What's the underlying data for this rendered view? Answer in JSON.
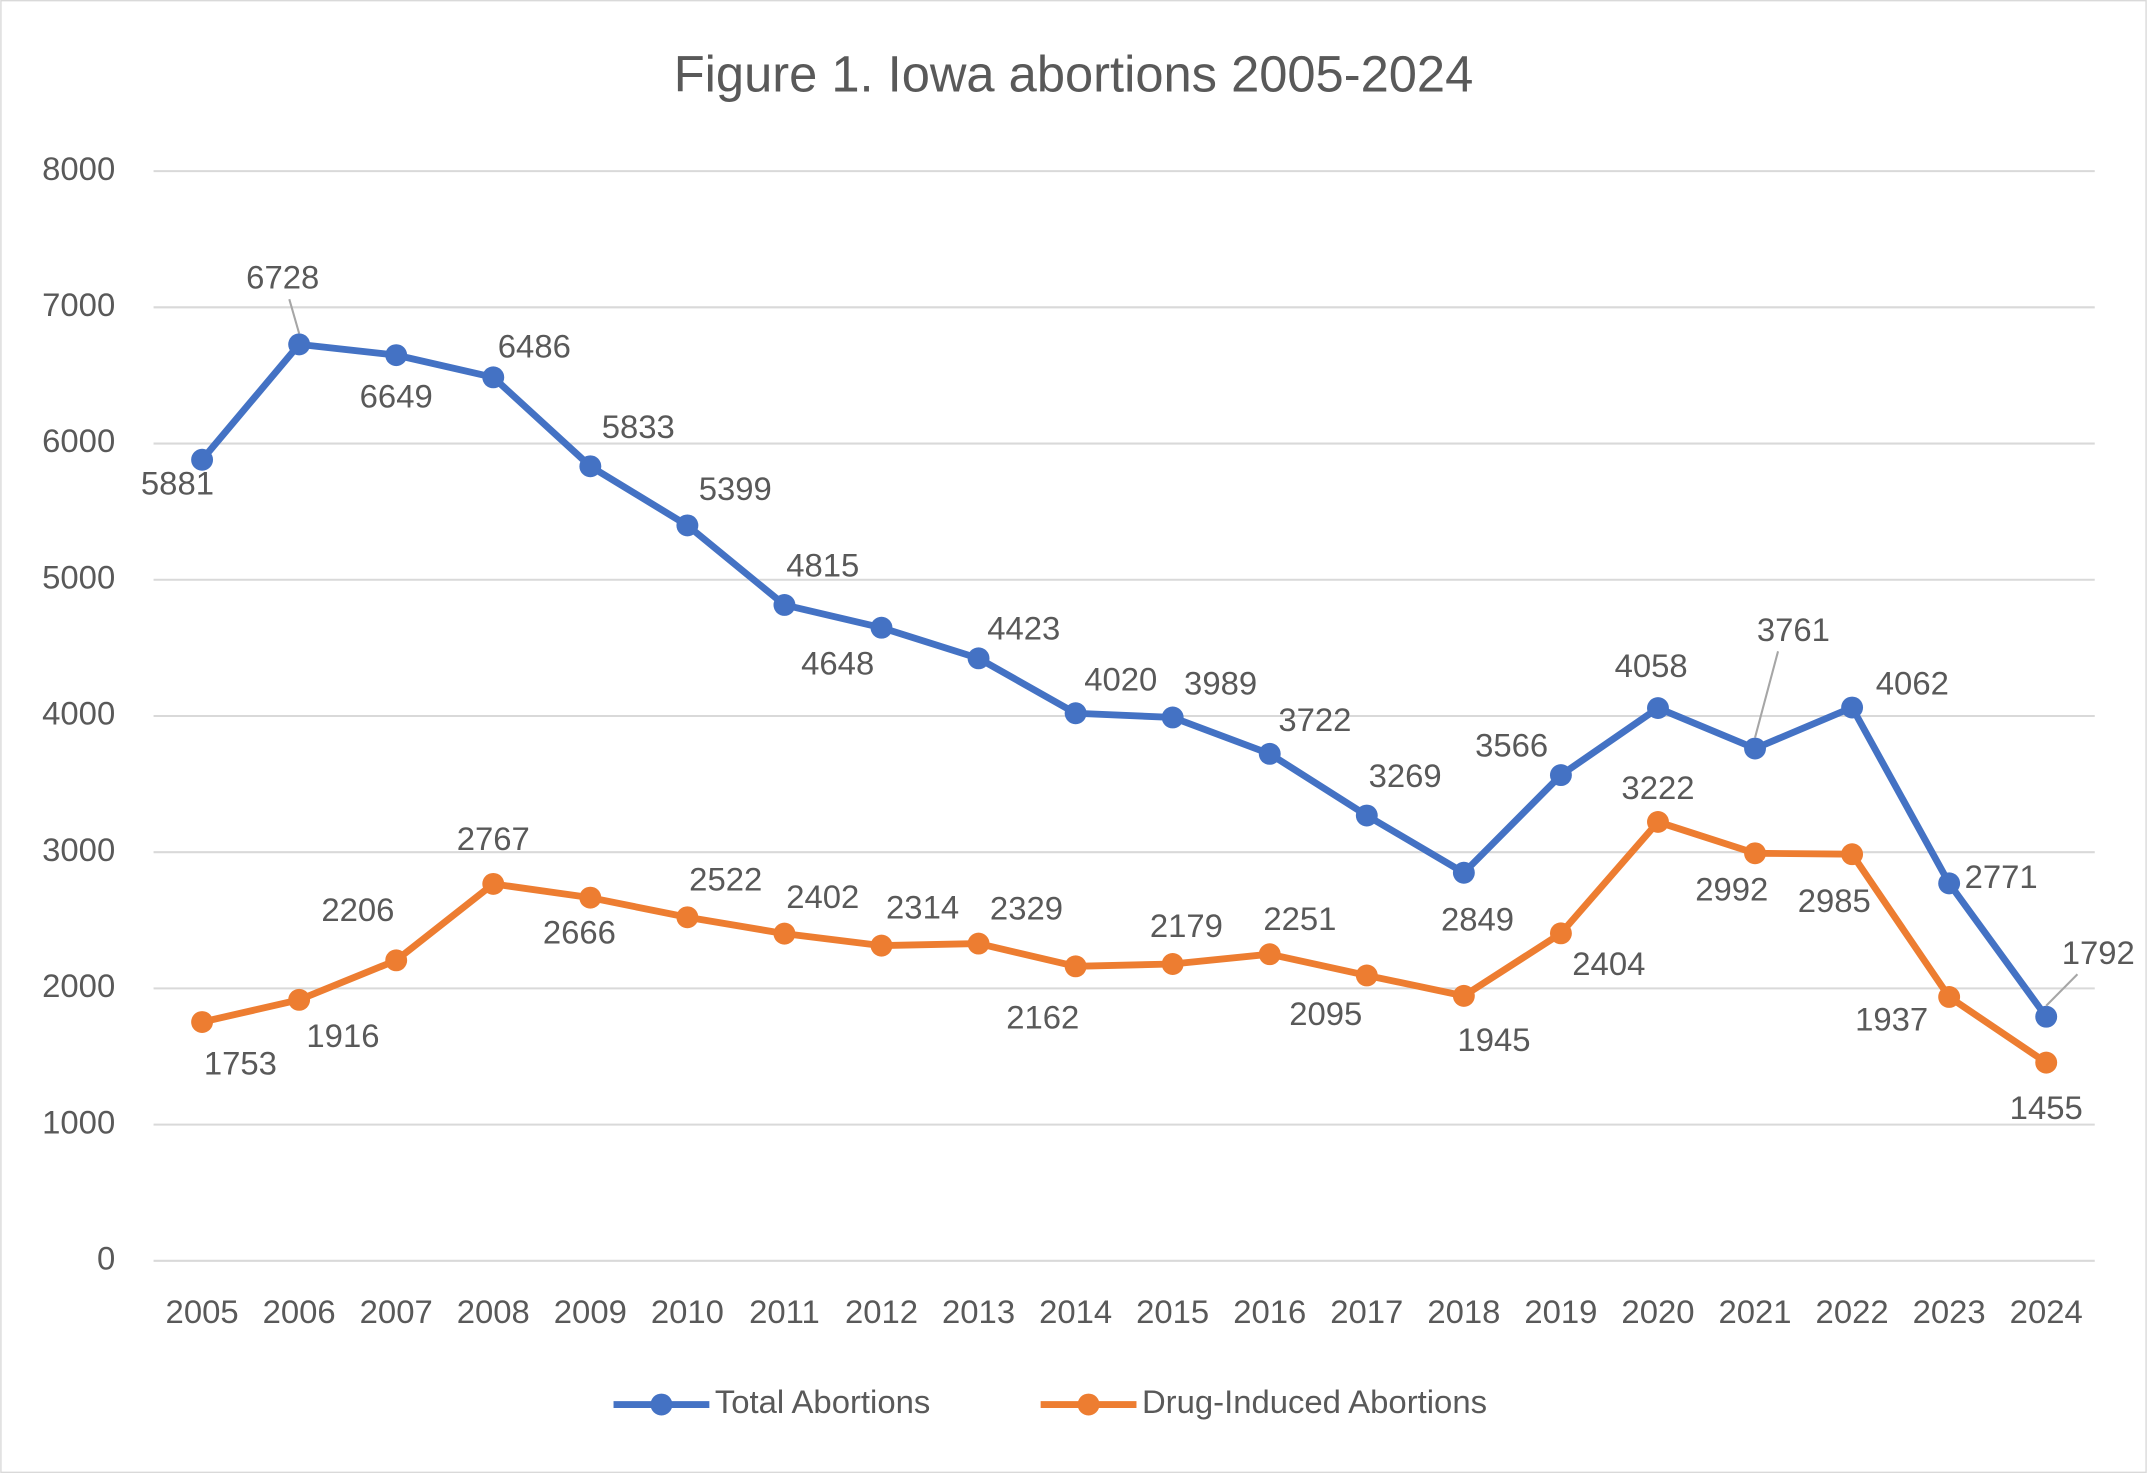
{
  "chart_data": {
    "type": "line",
    "title": "Figure 1. Iowa abortions 2005-2024",
    "categories": [
      "2005",
      "2006",
      "2007",
      "2008",
      "2009",
      "2010",
      "2011",
      "2012",
      "2013",
      "2014",
      "2015",
      "2016",
      "2017",
      "2018",
      "2019",
      "2020",
      "2021",
      "2022",
      "2023",
      "2024"
    ],
    "series": [
      {
        "name": "Total Abortions",
        "color": "#4472c4",
        "values": [
          5881,
          6728,
          6649,
          6486,
          5833,
          5399,
          4815,
          4648,
          4423,
          4020,
          3989,
          3722,
          3269,
          2849,
          3566,
          4058,
          3761,
          4062,
          2771,
          1792
        ]
      },
      {
        "name": "Drug-Induced Abortions",
        "color": "#ed7d31",
        "values": [
          1753,
          1916,
          2206,
          2767,
          2666,
          2522,
          2402,
          2314,
          2329,
          2162,
          2179,
          2251,
          2095,
          1945,
          2404,
          3222,
          2992,
          2985,
          1937,
          1455
        ]
      }
    ],
    "ylim": [
      0,
      8000
    ],
    "yticks": [
      0,
      1000,
      2000,
      3000,
      4000,
      5000,
      6000,
      7000,
      8000
    ],
    "grid": true,
    "legend": "bottom"
  }
}
